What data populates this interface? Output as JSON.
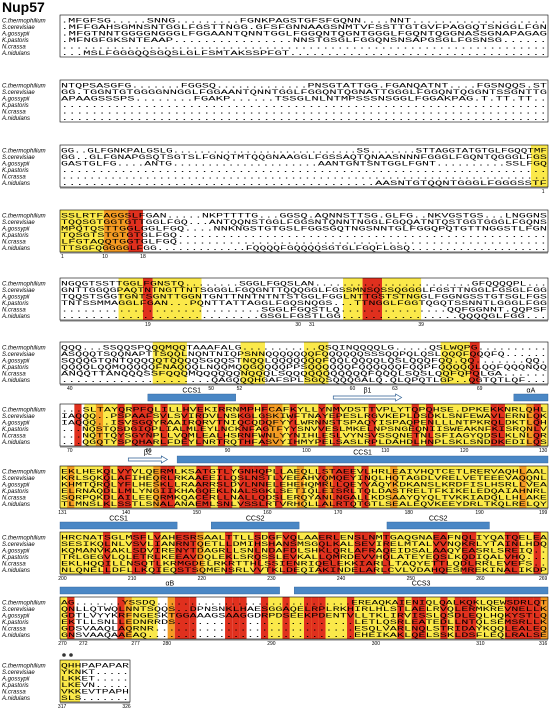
{
  "title": "Nup57",
  "species": [
    "C.thermophilium",
    "S.cerevisiae",
    "A.gossypii",
    "K.pastoris",
    "N.crassa",
    "A.nidulans"
  ],
  "blocks": [
    {
      "sequences": [
        ".MFGFSG.....SNNG.........FGNKPAGSTGFSFGQNN....NNT...................",
        ".MFFGAHSGMNSNTGGLFGSTTNGG.GFSFGNNAAGSNMTVFSSTTGTGVFPAGGQTSNGGLFGN",
        ".MFGTNNTGGGGNGGGLFGGAANTQNNTGGLFGGQNTQGNTGGGLFGQNTQGGNASSGNAPAGAG",
        ".MFNGFGKSNTEAAP................NNSTGSGLFGGQNSNSAPGSGLFGSNSG......",
        "...................................................................",
        "...MSLFGGGQQSGQSLGLFSMTAKSSPFGT..................................."
      ]
    },
    {
      "sequences": [
        "NTQPSASGFG.......FGGSQ.............PNSGTATTGG.FGANQATNT....FGSNQQS.ST",
        "GG.TGGNTGTGGGGNNGGLFGGAANTQNNTGGLFGGQNTQGNATTGGGLFGGQNTQGGNTSSGNTTG",
        "APAAGSSSPS........FGAKP......TSSGLNLNTMPSSSNSGGLFGGAKPAG.T.TT.TT..",
        ".................................................................",
        ".................................................................",
        "................................................................."
      ]
    },
    {
      "sequences": [
        "GG..GLFGNKPALGSLG............................SS.......STTAGGTATGTGLFGQQTMF",
        "GG..GLFGNAPGSQTSGTSLFGNQTMTQQGNAAGGLFGSSAQTQNAASNNNFGGGLFGQNTQGGGLFGS",
        "GASTGLFG....ANTG.....................AANTGNTSNTGGLFGNT..........SSLFGQ",
        "..................................................................",
        "......................................................................",
        "..........................................AASNTGTQQNTGGGLFGGGSSTF"
      ],
      "ruler": [
        1
      ]
    },
    {
      "sequences": [
        "SSLRTFAGGSLFGAN.....NKPTTTTG...GGSQ.AQNNSTTSG.GLFG..NKVGSTGS...LNGGNS",
        "TQQSGTGGTGTTGGLFGQ...ANTQQNSTGGLFGGSNTQNNTNGGLFGQQATNTQSTGGTGGGLFGQNS",
        "MPQTQSTTGGLGGLFGQ....NNKNGSTGTGSLFGGSGQTNGSNNTGLFGGQPQTGTTNGGSTLFGN",
        "TQSGTSTGTGTGLFGQ...................................................",
        "LFGTAQQTGGTGLFGQ...................................................",
        "TTSGFQGGGGLFGG.............FQQQQFGQQQQSGTGLFGQFLGSQ...................."
      ],
      "ruler": [
        1,
        10,
        18
      ]
    },
    {
      "sequences": [
        "NGQGTSSTTGGLFGNSTQ........SGGLFGQSLAN.......................GFQQQQPL...",
        "GNTTGGQGPAQTNTNGTTNTSGGGLFGQGNTTQQQGGLFGSSMNSQSSQGGGLFGSTTNGGLFGSGLFGG",
        "TQQSTSGGTGNTSGNTTGGNTGNTTNNTNTNTSTGGLFGGLNTTGSTSTNGGLFGGNGSSTGTSGLFGS",
        "TNTSSMMAGGLFGAN...PQNTTATTAGGLFGQSNQGS...TTNGGLFGGTQGQTSSNNTLGGGLFGG",
        "............................SGGLFGQSTLQ...............QQFGGNNT.QQPSF",
        "...........................GSGLFGSTLGG................QQQQGLFGG..."
      ],
      "ruler": [
        19,
        30,
        31,
        39
      ]
    },
    {
      "sequences": [
        "QQQ...SSQQSPQQQMQQTAAAFALG...........QSQINQQQQLG.....QSLWQPG..........",
        "ASQQQTSQQNAPTTSQQLNQNTNIQPSNNQQQQQQQFQQQQQQSSSQQPQLQSLQQQFQQQFQ......",
        "SQQQGTQNTQQQQQTQQQQSGQQSTNQQLQQQQQQQFQQLQQQQLQSLQQQFQQ.QQ.......QQ.",
        "QQQQLQQMQQQQQFNAQQQLNQQMQQGQQQQPPSQQQQQQFQQQQQQFQQPFQQQQQLQQFQQQNQQ",
        "ANQQTTANQQQSSFQQQMQQQQQQNQQQLSQQQQQQQQQQQFQQQLSQSLQQFQPQLGA......",
        ".....................QAGQQQHGAFSPLSGQSQQQGALQ.QLQPQTLGP..QGTQTLQF..."
      ],
      "ruler": [
        40,
        50,
        52,
        60,
        63,
        69
      ]
    },
    {
      "sequences": [
        "...SLTAYQRPFQLILLHVEKIRRNMPHFCAFKYLLYNMVDSTTVPLYTQPQHSE.DPKEKKNRLQHL",
        "IAQQQ..PSPAAFSVLSVIRDVLNSKGLGSKIWFTNAYEPESLRGVKEPLDSDKLSNFEWAVLERNLQK",
        "IAQQQ..ISVSGQYRAAIRQRVTNIQCQDQFYYLWRNNSTSPAQYISPAQPENLLLNTPKRQLDKTLQH",
        "...NQSTQSDGIQPLIALMLEYLNCKNFAGTFYYSNVVESLMKELNPSNGEQNIISWEAKNFKISRQNLV",
        "...NQTTQYSGYNPLLVQMLEALHSRNFWNLYYNIHLESLVYNSVSSQNETNLSFIAGYQDSLKLNLQR",
        "...QGQTYSPQHARLFDEYLNRTRQTHFASVYIHMYPELSASLRPLDAHDLHNPLSKLSNDDKEDILQS"
      ],
      "ruler": [
        70,
        80,
        90,
        100,
        110,
        120,
        130
      ],
      "structure": [
        "CCS1",
        "β1",
        "αA"
      ]
    },
    {
      "sequences": [
        "EKLHEKQLVYVLQERMLKSATGTLYGNHQPLLAEQLLSTAEEVLHRLEAIVHQTCETLRERVAQHLAAL",
        "KRLSQKQLAFIHEQRLRKAAEEILQSLNSTLVEEAHVQMQEYINQLHQTAGDLVRELVETEEEVAQQNL",
        "KHMTQRQLYFLHESKLLRAARRSLDVLNNELEHEHQMRLLQEYVAQYKDKANSLKRDFISLHSRLLVEA",
        "ELRNAQDLLMLYNGIIKHAGQEKLNALSGKLSETIQLEISRLTQLDASTRELTFKIKELEDQAIAHNRL",
        "SQRPQKDLAILEEQRMKQACERLLNALLQDSLERQYANLNGALLKDSAAYQYQLTVKKIADQLLHLAKE",
        "TLMNSLKLSSTLSNALANAEMLSNLVSSLRTVRHQLLALRTQTGTLSEALEQVKEEYDRLTKQLRELQY"
      ],
      "ruler": [
        131,
        140,
        150,
        160,
        170,
        180,
        190,
        199
      ],
      "structure": [
        "β2",
        "CCS1"
      ]
    },
    {
      "sequences": [
        "HRCNATSGLMSFLVAHESRSAALTTLLSDGFVQLAAERLENSLNMTGAQGNAEAFNQLIYQATQELEA",
        "SESIKQLNLVSVLIANRNTQETLLDMIHSHANSMSGQLKALSEVIRELMTALVVNQKRLYTAINLHDQ",
        "KQMANVKAKLSDVIRENYTDAGRLLSNLNDAFDLSHKLQRLAFRAQEIDSALAAQYEASRLSREIQ..",
        "TRLGEGVLQLETRLKEEAVDQLEKLSRQSSLEVKALLQMRDEVVHQLATEYEQSLKQDIQALVHQ...",
        "EKLHQQILLNSQTLKRMGDELRKRTTHLSSIENRIQELEKKIARLLTAQYETTLQDLRRLEVEFS..",
        "NLQNELLDFLLKQIEQSTSQMENSRLVVTKLDEQIAKINDELARLCVLVDAHQESMREKINALIKDP"
      ],
      "ruler": [
        200,
        210,
        220,
        230,
        240,
        250,
        260,
        269
      ],
      "structure": [
        "CCS1",
        "CCS2",
        "CCS2"
      ]
    },
    {
      "sequences": [
        "AG.......YSSDQ.............................EREAQKAIENIQLQALKQKLQEWSDRLQT",
        "QNLLQTWQLNNTSQQS..DPNSNKLHAESGGAQELRPLRKHIRLHLSTLAELRVQLERMKREVNELLK",
        "GDTLVYYKRFNGESKTGGAAAGSAAGGDRPDSEEKPDENTVLLTKLIRVISSLQSDLEQLHQKYSTLQ",
        "EKTLLSNLLEDNRRDS.........................LETLQSRLEATEDLLNTQLSEMSRLLK",
        "GDSVAAQLAQRNR............................ESQLVARLNQLSTRIDAYKQQLEALEQ",
        "GNSVAAQAAEAQ.............................EHEIKAKLQELSSKLDSFLEQLRALSE"
      ],
      "ruler": [
        270,
        272,
        277,
        280,
        290,
        300,
        310,
        316
      ],
      "structure": [
        "αB",
        "CCS3"
      ]
    },
    {
      "sequences": [
        "QHHPAPAPAR",
        "YKNKT.....",
        "LKKET.....",
        "LKEVN.....",
        "VKKEVTPAPH",
        "SLS......."
      ],
      "ruler": [
        317,
        326
      ]
    }
  ]
}
